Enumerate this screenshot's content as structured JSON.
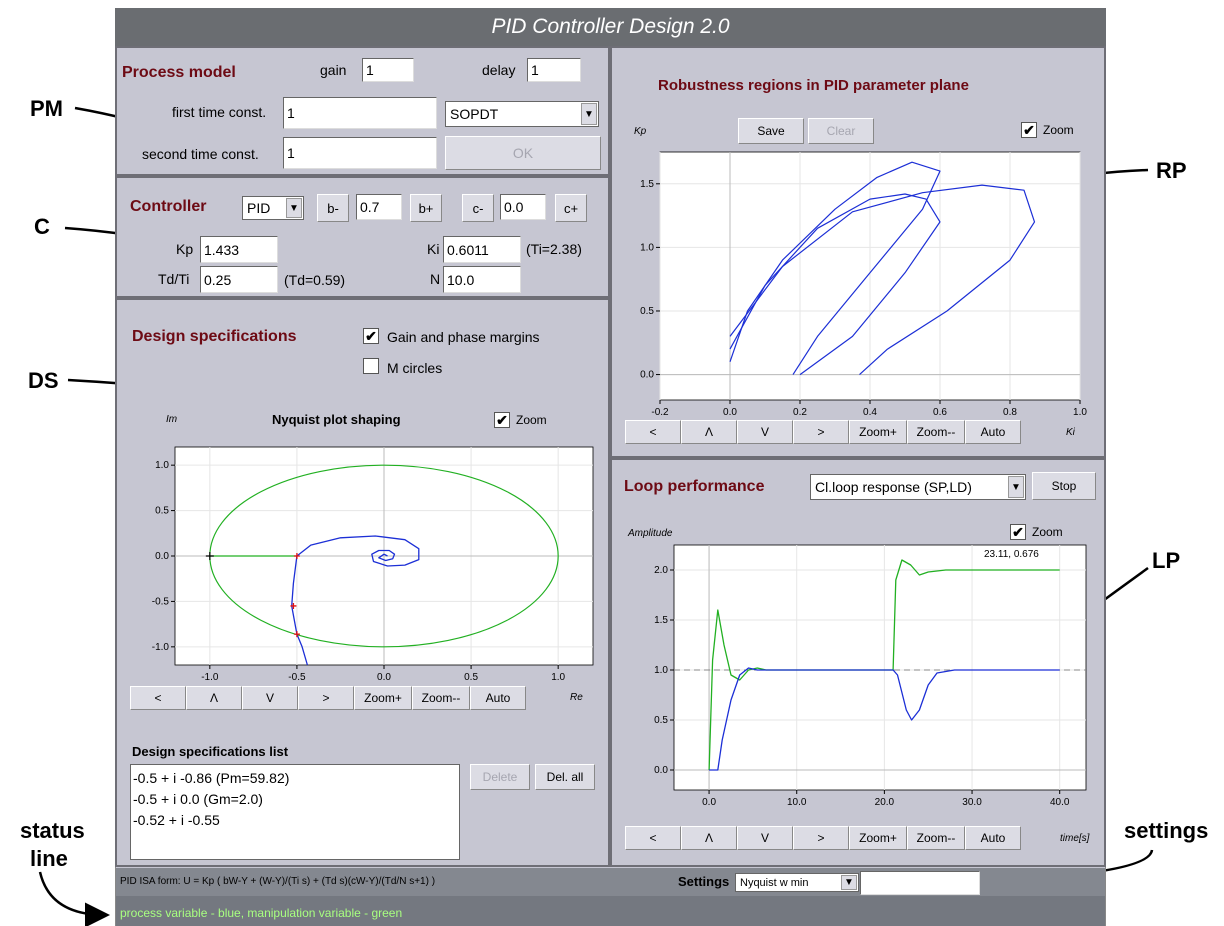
{
  "app": {
    "title": "PID Controller Design 2.0"
  },
  "annotations": {
    "pm": "PM",
    "c": "C",
    "ds": "DS",
    "rp": "RP",
    "lp": "LP",
    "settings": "settings",
    "status_line_1": "status",
    "status_line_2": "line"
  },
  "process_model": {
    "heading": "Process model",
    "gain_label": "gain",
    "gain_value": "1",
    "delay_label": "delay",
    "delay_value": "1",
    "first_tc_label": "first time const.",
    "first_tc_value": "1",
    "second_tc_label": "second time const.",
    "second_tc_value": "1",
    "model_type": "SOPDT",
    "ok_label": "OK"
  },
  "controller": {
    "heading": "Controller",
    "type": "PID",
    "b_minus": "b-",
    "b_value": "0.7",
    "b_plus": "b+",
    "c_minus": "c-",
    "c_value": "0.0",
    "c_plus": "c+",
    "kp_label": "Kp",
    "kp_value": "1.433",
    "ki_label": "Ki",
    "ki_value": "0.6011",
    "ti_note": "(Ti=2.38)",
    "tdti_label": "Td/Ti",
    "tdti_value": "0.25",
    "td_note": "(Td=0.59)",
    "n_label": "N",
    "n_value": "10.0"
  },
  "design_specs": {
    "heading": "Design specifications",
    "gain_phase_label": "Gain and phase margins",
    "gain_phase_checked": true,
    "m_circles_label": "M circles",
    "m_circles_checked": false,
    "plot_title": "Nyquist plot shaping",
    "im_label": "Im",
    "re_label": "Re",
    "zoom_label": "Zoom",
    "nav_buttons": [
      "<",
      "Λ",
      "V",
      ">",
      "Zoom+",
      "Zoom--",
      "Auto"
    ],
    "list_heading": "Design specifications list",
    "list_items": [
      "-0.5 + i -0.86  (Pm=59.82)",
      "-0.5 + i 0.0  (Gm=2.0)",
      "-0.52 + i -0.55"
    ],
    "delete_label": "Delete",
    "del_all_label": "Del. all"
  },
  "robustness": {
    "heading": "Robustness regions in PID parameter plane",
    "kp_axis": "Kp",
    "ki_axis": "Ki",
    "save_label": "Save",
    "clear_label": "Clear",
    "zoom_label": "Zoom",
    "nav_buttons": [
      "<",
      "Λ",
      "V",
      ">",
      "Zoom+",
      "Zoom--",
      "Auto"
    ]
  },
  "loop": {
    "heading": "Loop performance",
    "response_type": "Cl.loop response (SP,LD)",
    "stop_label": "Stop",
    "amplitude_label": "Amplitude",
    "time_label": "time[s]",
    "zoom_label": "Zoom",
    "cursor_readout": "23.11, 0.676",
    "nav_buttons": [
      "<",
      "Λ",
      "V",
      ">",
      "Zoom+",
      "Zoom--",
      "Auto"
    ]
  },
  "status": {
    "formula": "PID ISA form: U = Kp ( bW-Y + (W-Y)/(Ti s) + (Td s)(cW-Y)/(Td/N s+1) )",
    "settings_label": "Settings",
    "settings_value": "Nyquist w min",
    "settings_input": "",
    "message": "process variable - blue, manipulation variable - green"
  },
  "colors": {
    "process_variable": "#1c2fd6",
    "manipulation_variable": "#22b022",
    "heading": "#6d0a14",
    "status_text": "#a8ff80"
  },
  "chart_data": [
    {
      "type": "line",
      "title": "Nyquist plot shaping",
      "xlabel": "Re",
      "ylabel": "Im",
      "xlim": [
        -1.2,
        1.2
      ],
      "ylim": [
        -1.2,
        1.2
      ],
      "x_ticks": [
        "-1.0",
        "-0.5",
        "0.0",
        "0.5",
        "1.0"
      ],
      "y_ticks": [
        "1.0",
        "0.5",
        "0.0",
        "-0.5",
        "-1.0"
      ],
      "series": [
        {
          "color": "green",
          "role": "gain/phase margin circle",
          "center": [
            0,
            0
          ],
          "radius_x": 1.0,
          "radius_y": 1.0
        },
        {
          "color": "blue",
          "role": "Nyquist curve"
        }
      ],
      "markers": [
        [
          -0.5,
          -0.86
        ],
        [
          -0.5,
          0.0
        ],
        [
          -0.52,
          -0.55
        ]
      ],
      "grid": true
    },
    {
      "type": "line",
      "title": "Robustness regions in PID parameter plane",
      "xlabel": "Ki",
      "ylabel": "Kp",
      "xlim": [
        -0.2,
        1.0
      ],
      "ylim": [
        -0.2,
        1.75
      ],
      "x_ticks": [
        "-0.2",
        "0.0",
        "0.2",
        "0.4",
        "0.6",
        "0.8",
        "1.0"
      ],
      "y_ticks": [
        "1.5",
        "1.0",
        "0.5",
        "0.0"
      ],
      "series": [
        {
          "color": "blue",
          "points": [
            [
              0.0,
              0.1
            ],
            [
              0.05,
              0.5
            ],
            [
              0.15,
              0.9
            ],
            [
              0.3,
              1.3
            ],
            [
              0.42,
              1.55
            ],
            [
              0.52,
              1.67
            ],
            [
              0.6,
              1.6
            ],
            [
              0.55,
              1.3
            ],
            [
              0.4,
              0.8
            ],
            [
              0.25,
              0.3
            ],
            [
              0.18,
              0.0
            ]
          ]
        },
        {
          "color": "blue",
          "points": [
            [
              0.0,
              0.2
            ],
            [
              0.1,
              0.7
            ],
            [
              0.25,
              1.15
            ],
            [
              0.4,
              1.38
            ],
            [
              0.5,
              1.42
            ],
            [
              0.56,
              1.38
            ],
            [
              0.6,
              1.2
            ],
            [
              0.5,
              0.8
            ],
            [
              0.35,
              0.3
            ],
            [
              0.2,
              0.0
            ]
          ]
        },
        {
          "color": "blue",
          "points": [
            [
              0.0,
              0.3
            ],
            [
              0.15,
              0.85
            ],
            [
              0.35,
              1.28
            ],
            [
              0.55,
              1.43
            ],
            [
              0.72,
              1.49
            ],
            [
              0.84,
              1.45
            ],
            [
              0.87,
              1.2
            ],
            [
              0.8,
              0.9
            ],
            [
              0.62,
              0.5
            ],
            [
              0.45,
              0.2
            ],
            [
              0.37,
              0.0
            ]
          ]
        }
      ],
      "grid": true
    },
    {
      "type": "line",
      "title": "",
      "xlabel": "time[s]",
      "ylabel": "Amplitude",
      "xlim": [
        -4,
        43
      ],
      "ylim": [
        -0.2,
        2.25
      ],
      "x_ticks": [
        "0.0",
        "10.0",
        "20.0",
        "30.0",
        "40.0"
      ],
      "y_ticks": [
        "2.0",
        "1.5",
        "1.0",
        "0.5",
        "0.0"
      ],
      "series": [
        {
          "name": "process variable",
          "color": "blue",
          "points": [
            [
              0,
              0
            ],
            [
              1,
              0
            ],
            [
              1.5,
              0.3
            ],
            [
              2.5,
              0.7
            ],
            [
              3.5,
              0.95
            ],
            [
              4.5,
              1.02
            ],
            [
              5.5,
              1.0
            ],
            [
              21,
              1.0
            ],
            [
              21.5,
              0.95
            ],
            [
              22.5,
              0.6
            ],
            [
              23.1,
              0.5
            ],
            [
              24,
              0.6
            ],
            [
              25,
              0.85
            ],
            [
              26,
              0.97
            ],
            [
              28,
              1.0
            ],
            [
              40,
              1.0
            ]
          ]
        },
        {
          "name": "manipulation variable",
          "color": "green",
          "points": [
            [
              0,
              0
            ],
            [
              0.4,
              1.1
            ],
            [
              1,
              1.6
            ],
            [
              1.7,
              1.25
            ],
            [
              2.5,
              0.95
            ],
            [
              3.5,
              0.9
            ],
            [
              4.5,
              1.0
            ],
            [
              5.5,
              1.02
            ],
            [
              6.5,
              1.0
            ],
            [
              21,
              1.0
            ],
            [
              21.3,
              1.9
            ],
            [
              22,
              2.1
            ],
            [
              23,
              2.05
            ],
            [
              24,
              1.95
            ],
            [
              25,
              1.98
            ],
            [
              27,
              2.0
            ],
            [
              40,
              2.0
            ]
          ]
        }
      ],
      "reference_line": 1.0,
      "grid": true
    }
  ]
}
